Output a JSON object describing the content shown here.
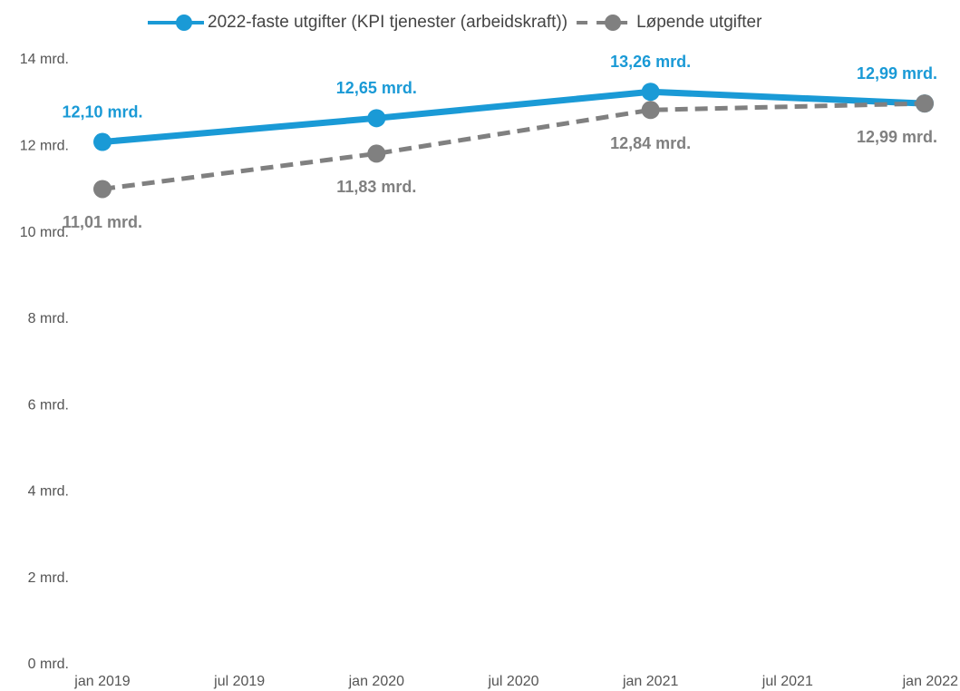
{
  "chart_data": {
    "type": "line",
    "x": [
      2019,
      2020,
      2021,
      2022
    ],
    "xlim": [
      2019,
      2022
    ],
    "xticks": [
      {
        "value": 2019,
        "label": "jan 2019"
      },
      {
        "value": 2019.5,
        "label": "jul 2019"
      },
      {
        "value": 2020,
        "label": "jan 2020"
      },
      {
        "value": 2020.5,
        "label": "jul 2020"
      },
      {
        "value": 2021,
        "label": "jan 2021"
      },
      {
        "value": 2021.5,
        "label": "jul 2021"
      },
      {
        "value": 2022,
        "label": "jan 2022"
      }
    ],
    "ylim": [
      0,
      14
    ],
    "yticks": [
      {
        "value": 0,
        "label": "0 mrd."
      },
      {
        "value": 2,
        "label": "2 mrd."
      },
      {
        "value": 4,
        "label": "4 mrd."
      },
      {
        "value": 6,
        "label": "6 mrd."
      },
      {
        "value": 8,
        "label": "8 mrd."
      },
      {
        "value": 10,
        "label": "10 mrd."
      },
      {
        "value": 12,
        "label": "12 mrd."
      },
      {
        "value": 14,
        "label": "14 mrd."
      }
    ],
    "grid": false,
    "legend": "top",
    "series": [
      {
        "name": "2022-faste utgifter (KPI tjenester (arbeidskraft))",
        "color": "#1a9ad6",
        "dashed": false,
        "label_position": "above",
        "values": [
          12.1,
          12.65,
          13.26,
          12.99
        ],
        "value_labels": [
          "12,10 mrd.",
          "12,65 mrd.",
          "13,26 mrd.",
          "12,99 mrd."
        ]
      },
      {
        "name": "Løpende utgifter",
        "color": "#808080",
        "dashed": true,
        "label_position": "below",
        "values": [
          11.01,
          11.83,
          12.84,
          12.99
        ],
        "value_labels": [
          "11,01 mrd.",
          "11,83 mrd.",
          "12,84 mrd.",
          "12,99 mrd."
        ]
      }
    ]
  }
}
